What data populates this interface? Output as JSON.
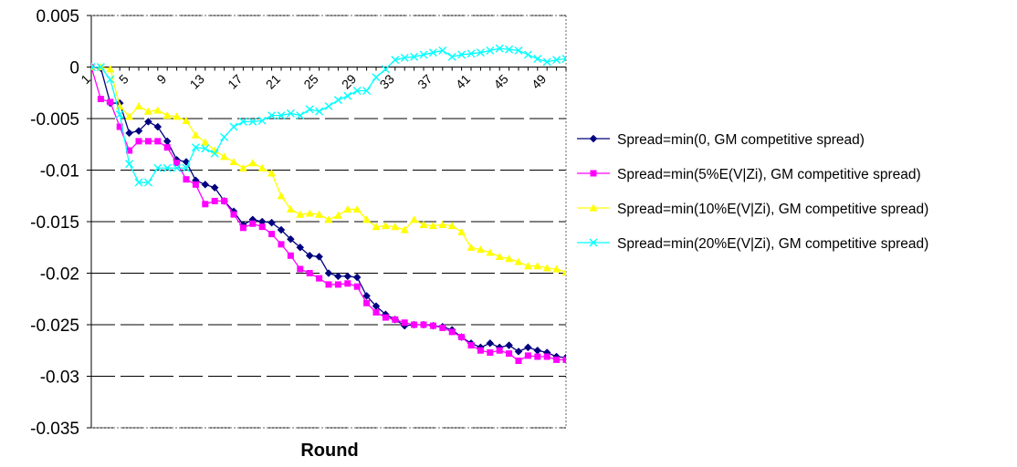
{
  "chart_data": {
    "type": "line",
    "xlabel": "Round",
    "ylabel": "",
    "ylim": [
      -0.035,
      0.005
    ],
    "yticks": [
      0.005,
      0,
      -0.005,
      -0.01,
      -0.015,
      -0.02,
      -0.025,
      -0.03,
      -0.035
    ],
    "ytick_labels": [
      "0.005",
      "0",
      "-0.005",
      "-0.01",
      "-0.015",
      "-0.02",
      "-0.025",
      "-0.03",
      "-0.035"
    ],
    "xlim": [
      1,
      51
    ],
    "xticks": [
      1,
      5,
      9,
      13,
      17,
      21,
      25,
      29,
      33,
      37,
      41,
      45,
      49
    ],
    "xtick_labels": [
      "1",
      "5",
      "9",
      "13",
      "17",
      "21",
      "25",
      "29",
      "33",
      "37",
      "41",
      "45",
      "49"
    ],
    "grid": "horizontal dashed",
    "legend_position": "right",
    "x": [
      1,
      2,
      3,
      4,
      5,
      6,
      7,
      8,
      9,
      10,
      11,
      12,
      13,
      14,
      15,
      16,
      17,
      18,
      19,
      20,
      21,
      22,
      23,
      24,
      25,
      26,
      27,
      28,
      29,
      30,
      31,
      32,
      33,
      34,
      35,
      36,
      37,
      38,
      39,
      40,
      41,
      42,
      43,
      44,
      45,
      46,
      47,
      48,
      49,
      50,
      51
    ],
    "series": [
      {
        "name": "Spread=min(0, GM competitive spread)",
        "color": "#000080",
        "marker": "diamond",
        "values": [
          0,
          -0.0001,
          -0.0035,
          -0.0035,
          -0.0064,
          -0.0062,
          -0.0053,
          -0.0058,
          -0.0072,
          -0.009,
          -0.0092,
          -0.011,
          -0.0114,
          -0.0117,
          -0.013,
          -0.014,
          -0.0153,
          -0.0148,
          -0.015,
          -0.0151,
          -0.0158,
          -0.0167,
          -0.0175,
          -0.0183,
          -0.0184,
          -0.02,
          -0.0203,
          -0.0203,
          -0.0204,
          -0.0222,
          -0.0232,
          -0.024,
          -0.0245,
          -0.0251,
          -0.025,
          -0.025,
          -0.0251,
          -0.0252,
          -0.0255,
          -0.0262,
          -0.0268,
          -0.0272,
          -0.0268,
          -0.0272,
          -0.027,
          -0.0276,
          -0.0272,
          -0.0275,
          -0.0277,
          -0.0281,
          -0.0282
        ]
      },
      {
        "name": "Spread=min(5%E(V|Zi), GM competitive spread)",
        "color": "#ff00ff",
        "marker": "square",
        "values": [
          0,
          -0.0031,
          -0.0034,
          -0.0058,
          -0.0081,
          -0.0072,
          -0.0072,
          -0.0072,
          -0.0078,
          -0.0093,
          -0.0109,
          -0.0114,
          -0.0133,
          -0.013,
          -0.013,
          -0.0143,
          -0.0156,
          -0.0152,
          -0.0155,
          -0.0162,
          -0.0172,
          -0.0183,
          -0.0196,
          -0.02,
          -0.0205,
          -0.0211,
          -0.0211,
          -0.021,
          -0.0213,
          -0.0229,
          -0.0238,
          -0.0243,
          -0.0245,
          -0.0248,
          -0.025,
          -0.025,
          -0.0251,
          -0.0253,
          -0.0257,
          -0.0262,
          -0.027,
          -0.0275,
          -0.0277,
          -0.0275,
          -0.0278,
          -0.0285,
          -0.028,
          -0.0281,
          -0.0281,
          -0.0284,
          -0.0284
        ]
      },
      {
        "name": "Spread=min(10%E(V|Zi), GM competitive spread)",
        "color": "#ffff00",
        "marker": "triangle",
        "values": [
          0,
          0,
          -0.0002,
          -0.0038,
          -0.0048,
          -0.0038,
          -0.0043,
          -0.0042,
          -0.0047,
          -0.0048,
          -0.0052,
          -0.0066,
          -0.0073,
          -0.0081,
          -0.0087,
          -0.0092,
          -0.0098,
          -0.0093,
          -0.0098,
          -0.0103,
          -0.0125,
          -0.0138,
          -0.0143,
          -0.0142,
          -0.0143,
          -0.0148,
          -0.0144,
          -0.0138,
          -0.0138,
          -0.0148,
          -0.0155,
          -0.0154,
          -0.0155,
          -0.0158,
          -0.0148,
          -0.0153,
          -0.0154,
          -0.0153,
          -0.0154,
          -0.016,
          -0.0175,
          -0.0177,
          -0.018,
          -0.0184,
          -0.0186,
          -0.0189,
          -0.0193,
          -0.0193,
          -0.0195,
          -0.0196,
          -0.0199
        ]
      },
      {
        "name": "Spread=min(20%E(V|Zi), GM competitive spread)",
        "color": "#00ffff",
        "marker": "x",
        "values": [
          0,
          0,
          -0.0012,
          -0.0046,
          -0.0094,
          -0.0112,
          -0.0112,
          -0.0098,
          -0.0098,
          -0.0098,
          -0.0098,
          -0.0078,
          -0.0079,
          -0.0084,
          -0.0068,
          -0.0058,
          -0.0053,
          -0.0053,
          -0.0052,
          -0.0047,
          -0.0047,
          -0.0045,
          -0.0047,
          -0.0041,
          -0.0043,
          -0.0038,
          -0.0032,
          -0.0028,
          -0.0023,
          -0.0023,
          -0.001,
          -0.0002,
          0.0007,
          0.0009,
          0.001,
          0.0012,
          0.0014,
          0.0016,
          0.001,
          0.0012,
          0.0013,
          0.0014,
          0.0016,
          0.0018,
          0.0017,
          0.0016,
          0.0012,
          0.0008,
          0.0005,
          0.0007,
          0.0008
        ]
      }
    ]
  }
}
